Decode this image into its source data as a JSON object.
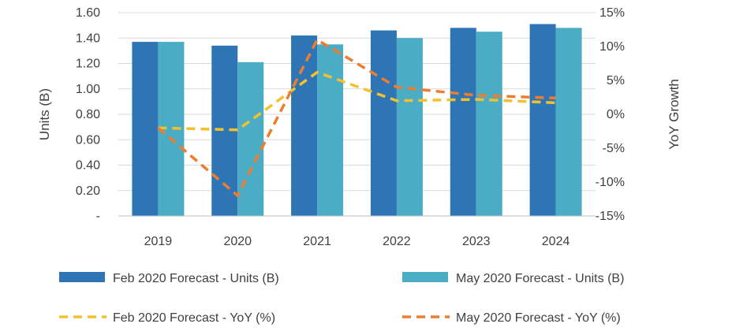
{
  "chart_data": {
    "type": "bar",
    "categories": [
      "2019",
      "2020",
      "2021",
      "2022",
      "2023",
      "2024"
    ],
    "series": [
      {
        "name": "Feb 2020 Forecast - Units (B)",
        "kind": "bar",
        "axis": "left",
        "color": "#2e75b6",
        "values": [
          1.37,
          1.34,
          1.42,
          1.46,
          1.48,
          1.51
        ]
      },
      {
        "name": "May 2020 Forecast - Units (B)",
        "kind": "bar",
        "axis": "left",
        "color": "#4bacc6",
        "values": [
          1.37,
          1.21,
          1.35,
          1.4,
          1.45,
          1.48
        ]
      },
      {
        "name": "Feb 2020 Forecast - YoY (%)",
        "kind": "line",
        "axis": "right",
        "color": "#f2c12e",
        "values": [
          -2.0,
          -2.3,
          6.2,
          2.0,
          2.2,
          1.7
        ]
      },
      {
        "name": "May 2020 Forecast - YoY (%)",
        "kind": "line",
        "axis": "right",
        "color": "#ed7d31",
        "values": [
          -2.0,
          -12.0,
          11.0,
          4.0,
          2.8,
          2.4
        ]
      }
    ],
    "ylabel": "Units (B)",
    "y2label": "YoY Growth",
    "ylim": [
      0,
      1.6
    ],
    "y2lim": [
      -15,
      15
    ],
    "yticks": [
      "-",
      "0.20",
      "0.40",
      "0.60",
      "0.80",
      "1.00",
      "1.20",
      "1.40",
      "1.60"
    ],
    "y2ticks": [
      "-15%",
      "-10%",
      "-5%",
      "0%",
      "5%",
      "10%",
      "15%"
    ],
    "grid": true,
    "legend_position": "bottom"
  }
}
